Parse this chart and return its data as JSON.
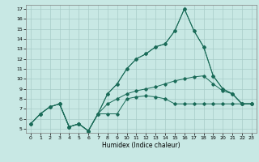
{
  "xlabel": "Humidex (Indice chaleur)",
  "bg_color": "#c8e8e4",
  "grid_color": "#a8ccc8",
  "line_color": "#1a6b58",
  "xlim_min": -0.5,
  "xlim_max": 23.5,
  "ylim_min": 4.6,
  "ylim_max": 17.4,
  "xticks": [
    0,
    1,
    2,
    3,
    4,
    5,
    6,
    7,
    8,
    9,
    10,
    11,
    12,
    13,
    14,
    15,
    16,
    17,
    18,
    19,
    20,
    21,
    22,
    23
  ],
  "yticks": [
    5,
    6,
    7,
    8,
    9,
    10,
    11,
    12,
    13,
    14,
    15,
    16,
    17
  ],
  "line1_x": [
    0,
    1,
    2,
    3,
    4,
    5,
    6,
    7,
    8,
    9,
    10,
    11,
    12,
    13,
    14,
    15,
    16,
    17,
    18,
    19,
    20,
    21,
    22,
    23
  ],
  "line1_y": [
    5.5,
    6.5,
    7.2,
    7.5,
    5.2,
    5.5,
    4.8,
    6.5,
    6.5,
    6.5,
    8.0,
    8.2,
    8.3,
    8.2,
    8.0,
    7.5,
    7.5,
    7.5,
    7.5,
    7.5,
    7.5,
    7.5,
    7.5,
    7.5
  ],
  "line2_x": [
    0,
    1,
    2,
    3,
    4,
    5,
    6,
    7,
    8,
    9,
    10,
    11,
    12,
    13,
    14,
    15,
    16,
    17,
    18,
    19,
    20,
    21,
    22,
    23
  ],
  "line2_y": [
    5.5,
    6.5,
    7.2,
    7.5,
    5.2,
    5.5,
    4.8,
    6.5,
    7.5,
    8.0,
    8.5,
    8.8,
    9.0,
    9.2,
    9.5,
    9.8,
    10.0,
    10.2,
    10.3,
    9.5,
    8.8,
    8.5,
    7.5,
    7.5
  ],
  "line3_x": [
    0,
    1,
    2,
    3,
    4,
    5,
    6,
    7,
    8,
    9,
    10,
    11,
    12,
    13,
    14,
    15,
    16,
    17,
    18,
    19,
    20,
    21,
    22,
    23
  ],
  "line3_y": [
    5.5,
    6.5,
    7.2,
    7.5,
    5.2,
    5.5,
    4.8,
    6.5,
    8.5,
    9.5,
    11.0,
    12.0,
    12.5,
    13.2,
    13.5,
    14.8,
    17.0,
    14.8,
    13.2,
    10.3,
    9.0,
    8.5,
    7.5,
    7.5
  ],
  "line4_x": [
    3,
    4,
    5,
    6,
    7,
    8,
    9,
    10,
    11,
    12,
    13,
    14,
    15,
    16,
    17,
    18,
    19,
    20,
    21,
    22,
    23
  ],
  "line4_y": [
    7.5,
    5.2,
    5.5,
    4.8,
    6.5,
    8.5,
    9.5,
    11.0,
    12.0,
    12.5,
    13.2,
    13.5,
    14.8,
    17.0,
    14.8,
    13.2,
    10.3,
    9.0,
    8.5,
    7.5,
    7.5
  ]
}
